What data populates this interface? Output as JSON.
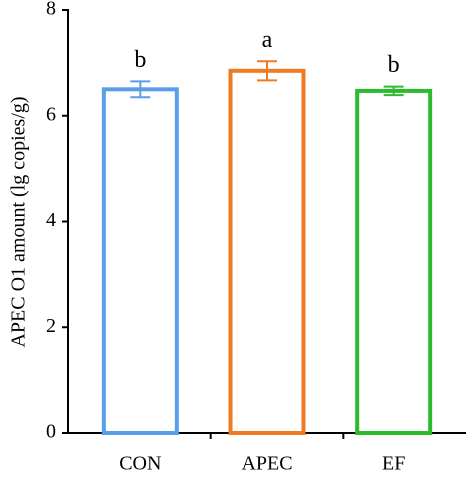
{
  "chart_data": {
    "type": "bar",
    "y_label": "APEC O1 amount (lg copies/g)",
    "categories": [
      "CON",
      "APEC",
      "EF"
    ],
    "values": [
      6.5,
      6.85,
      6.47
    ],
    "errors": [
      0.15,
      0.18,
      0.08
    ],
    "colors": [
      "#5b9ee8",
      "#f07a22",
      "#2cbb2c"
    ],
    "significance": [
      "b",
      "a",
      "b"
    ],
    "ylim": [
      0,
      8
    ],
    "yticks": [
      0,
      2,
      4,
      6,
      8
    ],
    "grid": false
  }
}
